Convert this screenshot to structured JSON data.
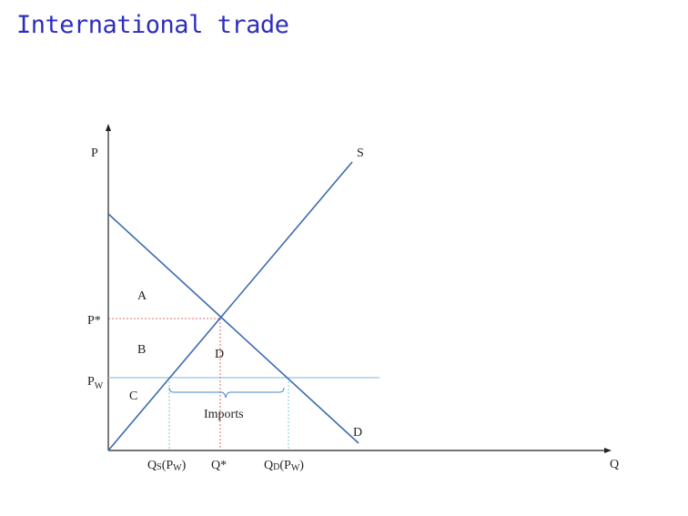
{
  "title": "International trade",
  "axes": {
    "y_label": "P",
    "x_label": "Q"
  },
  "curves": {
    "supply_label": "S",
    "demand_label": "D"
  },
  "areas": {
    "a": "A",
    "b": "B",
    "c": "C",
    "d": "D"
  },
  "prices": {
    "equilibrium": "P*",
    "world_main": "P",
    "world_sub": "W"
  },
  "quantities": {
    "qs_main": "Q",
    "qs_sub": "S",
    "qs_paren_open": "(P",
    "qs_paren_sub": "W",
    "qs_paren_close": ")",
    "qstar": "Q*",
    "qd_main": "Q",
    "qd_sub": "D",
    "qd_paren_open": "(P",
    "qd_paren_sub": "W",
    "qd_paren_close": ")"
  },
  "imports_label": "Imports",
  "colors": {
    "title": "#2e2ebe",
    "curve": "#3d6bb0",
    "world_price": "#9ec3e0",
    "equilibrium_guides": "#d94040",
    "qs_qd_guides": "#55c0c0",
    "axis": "#222222"
  }
}
